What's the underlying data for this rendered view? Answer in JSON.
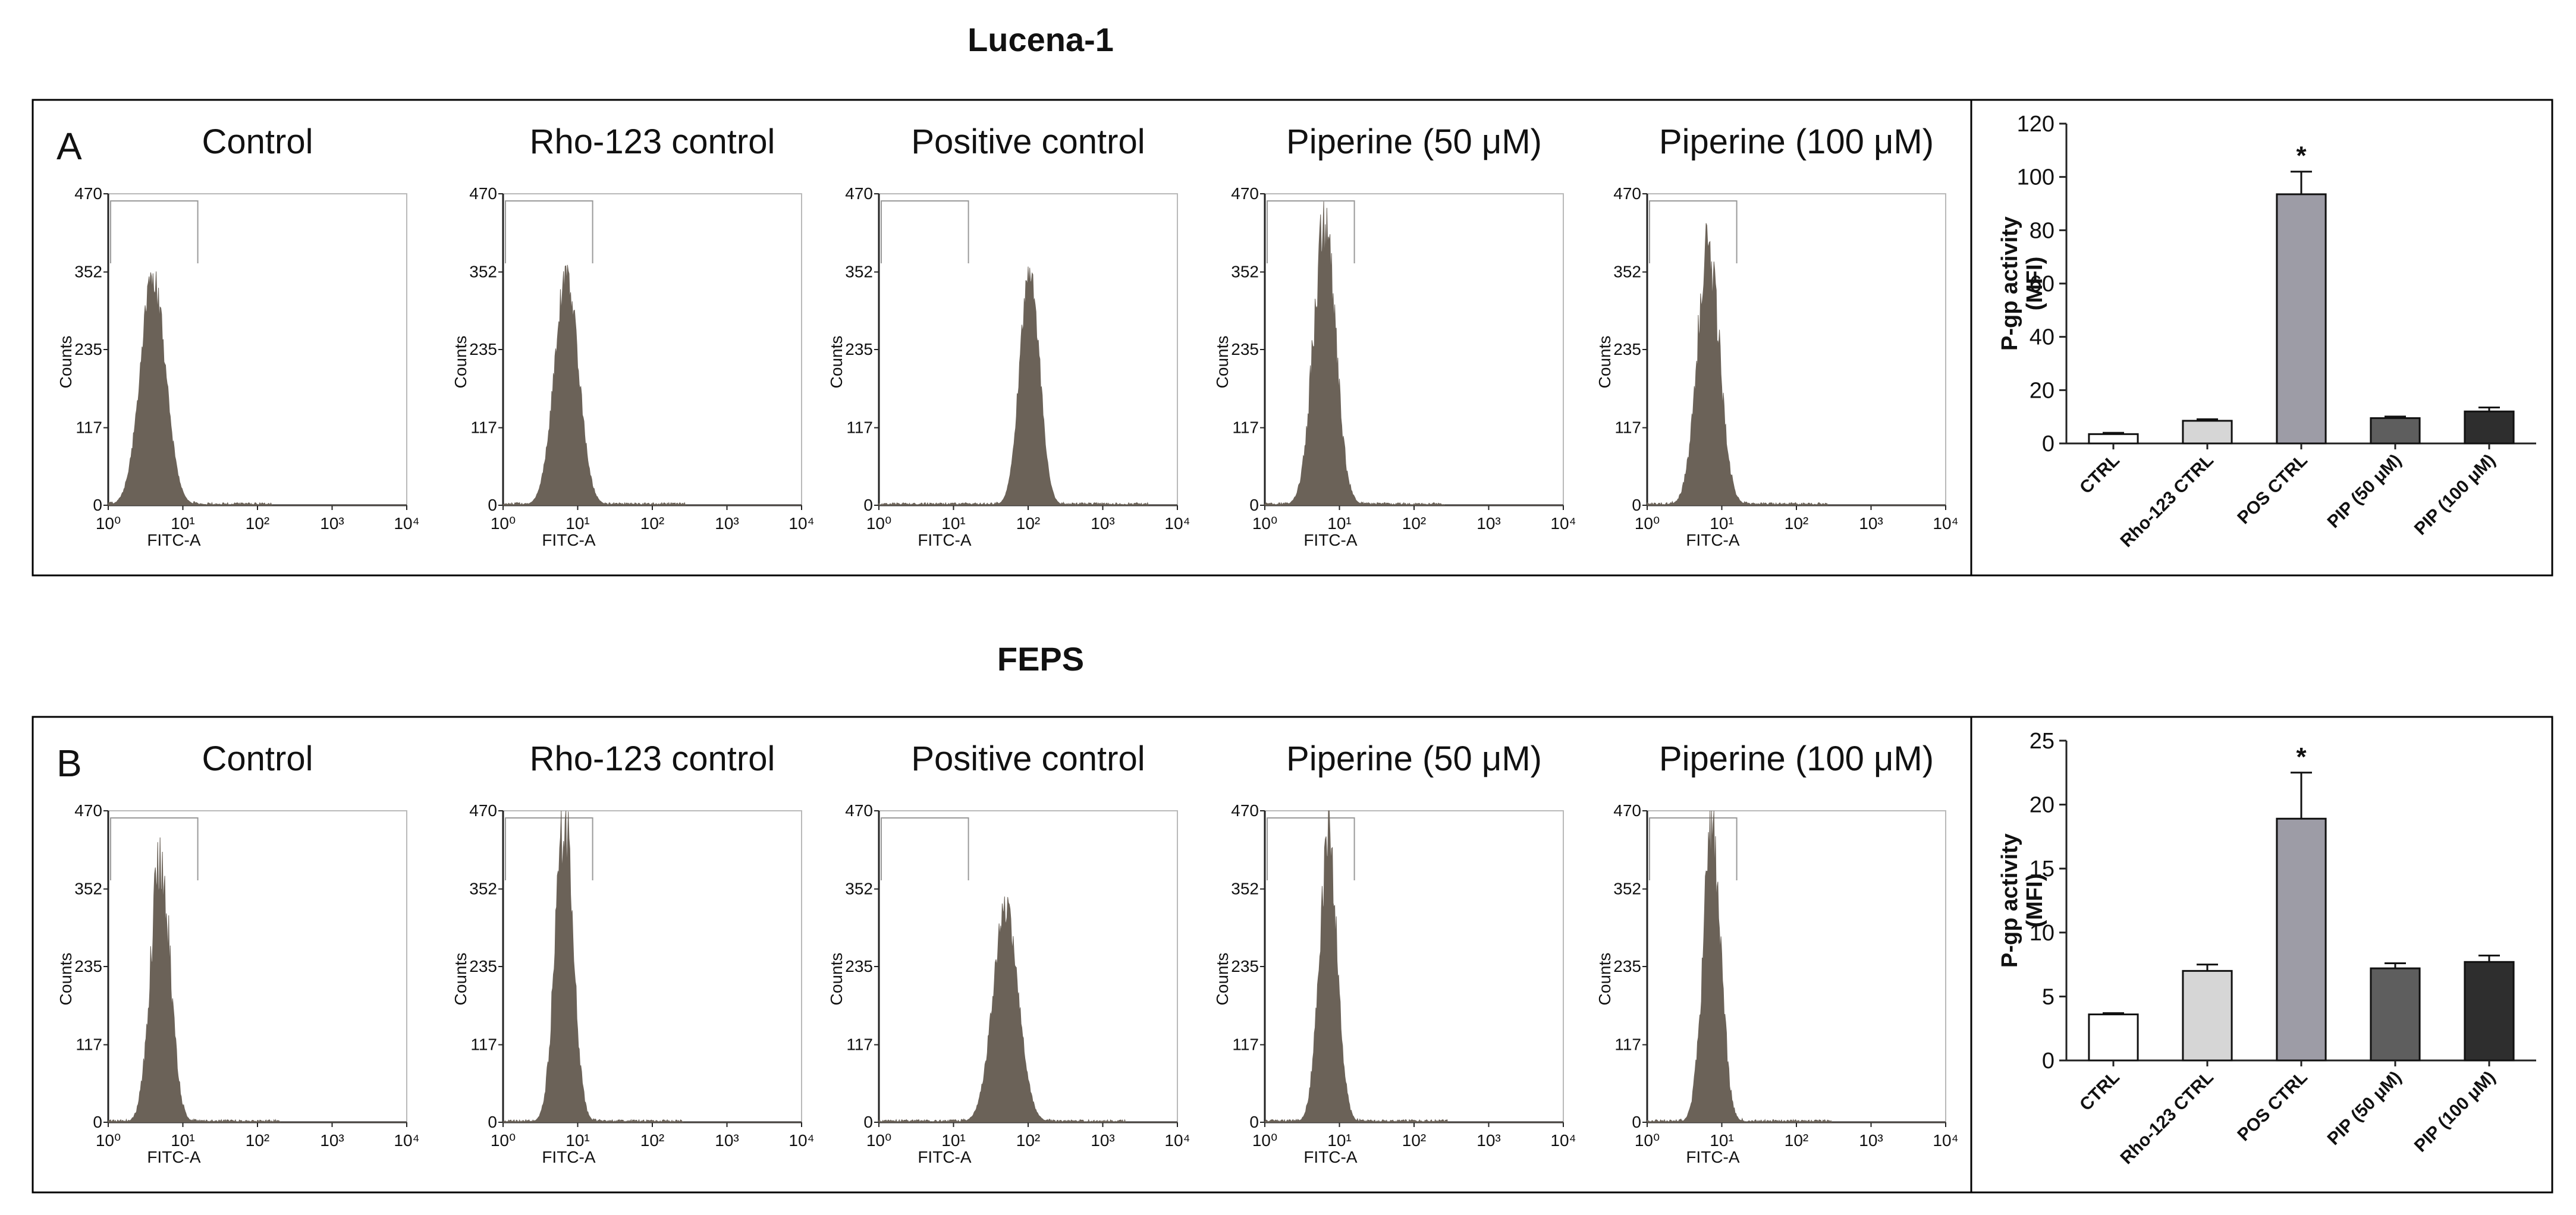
{
  "figure": {
    "panels": [
      {
        "title": "Lucena-1",
        "label": "A",
        "histograms": [
          {
            "title": "Control",
            "ylabel": "Counts",
            "xlabel": "FITC-A",
            "peak_log10": 0.6,
            "sigma": 0.17,
            "peak_count": 340,
            "spiky": false
          },
          {
            "title": "Rho-123 control",
            "ylabel": "Counts",
            "xlabel": "FITC-A",
            "peak_log10": 0.85,
            "sigma": 0.16,
            "peak_count": 345,
            "spiky": false
          },
          {
            "title": "Positive control",
            "ylabel": "Counts",
            "xlabel": "FITC-A",
            "peak_log10": 2.02,
            "sigma": 0.13,
            "peak_count": 360,
            "spiky": false
          },
          {
            "title": "Piperine (50 μM)",
            "ylabel": "Counts",
            "xlabel": "FITC-A",
            "peak_log10": 0.8,
            "sigma": 0.15,
            "peak_count": 410,
            "spiky": true
          },
          {
            "title": "Piperine (100 μM)",
            "ylabel": "Counts",
            "xlabel": "FITC-A",
            "peak_log10": 0.82,
            "sigma": 0.15,
            "peak_count": 378,
            "spiky": true
          }
        ],
        "histogram_axis": {
          "yticks": [
            "470",
            "352",
            "235",
            "117",
            "0"
          ],
          "ytick_values": [
            470,
            352,
            235,
            117,
            0
          ],
          "xticks": [
            "10⁰",
            "10¹",
            "10²",
            "10³",
            "10⁴"
          ],
          "ymax": 470,
          "gate_end_log10": 1.2
        },
        "bar": {
          "categories": [
            "CTRL",
            "Rho-123 CTRL",
            "POS CTRL",
            "PIP (50 μM)",
            "PIP (100 μM)"
          ],
          "values": [
            3.5,
            8.5,
            93.5,
            9.5,
            12
          ],
          "errors": [
            0.5,
            0.6,
            8.5,
            0.6,
            1.5
          ],
          "significance": [
            "",
            "",
            "*",
            "",
            ""
          ],
          "ylabel_line1": "P-gp activity",
          "ylabel_line2": "(MFI)",
          "yticks": [
            "0",
            "20",
            "40",
            "60",
            "80",
            "100",
            "120"
          ],
          "ylim": [
            0,
            120
          ]
        }
      },
      {
        "title": "FEPS",
        "label": "B",
        "histograms": [
          {
            "title": "Control",
            "ylabel": "Counts",
            "xlabel": "FITC-A",
            "peak_log10": 0.7,
            "sigma": 0.13,
            "peak_count": 398,
            "spiky": true
          },
          {
            "title": "Rho-123 control",
            "ylabel": "Counts",
            "xlabel": "FITC-A",
            "peak_log10": 0.82,
            "sigma": 0.12,
            "peak_count": 455,
            "spiky": true
          },
          {
            "title": "Positive control",
            "ylabel": "Counts",
            "xlabel": "FITC-A",
            "peak_log10": 1.7,
            "sigma": 0.17,
            "peak_count": 320,
            "spiky": false
          },
          {
            "title": "Piperine (50 μM)",
            "ylabel": "Counts",
            "xlabel": "FITC-A",
            "peak_log10": 0.85,
            "sigma": 0.12,
            "peak_count": 425,
            "spiky": true
          },
          {
            "title": "Piperine (100 μM)",
            "ylabel": "Counts",
            "xlabel": "FITC-A",
            "peak_log10": 0.87,
            "sigma": 0.12,
            "peak_count": 435,
            "spiky": true
          }
        ],
        "histogram_axis": {
          "yticks": [
            "470",
            "352",
            "235",
            "117",
            "0"
          ],
          "ytick_values": [
            470,
            352,
            235,
            117,
            0
          ],
          "xticks": [
            "10⁰",
            "10¹",
            "10²",
            "10³",
            "10⁴"
          ],
          "ymax": 470,
          "gate_end_log10": 1.2
        },
        "bar": {
          "categories": [
            "CTRL",
            "Rho-123 CTRL",
            "POS CTRL",
            "PIP (50 μM)",
            "PIP (100 μM)"
          ],
          "values": [
            3.6,
            7.0,
            18.9,
            7.2,
            7.7
          ],
          "errors": [
            0.1,
            0.5,
            3.6,
            0.4,
            0.5
          ],
          "significance": [
            "",
            "",
            "*",
            "",
            ""
          ],
          "ylabel_line1": "P-gp activity",
          "ylabel_line2": "(MFI)",
          "yticks": [
            "0",
            "5",
            "10",
            "15",
            "20",
            "25"
          ],
          "ylim": [
            0,
            25
          ]
        }
      }
    ]
  },
  "colors": {
    "hist_fill": "#6b6258",
    "bars": [
      "#ffffff",
      "#d6d6d6",
      "#9d9ca6",
      "#5e5e5e",
      "#2e2e2e"
    ],
    "axis": "#222222",
    "panel_border": "#000000",
    "gate": "#9a9a9a"
  },
  "chart_data": [
    {
      "type": "bar",
      "title": "Lucena-1",
      "categories": [
        "CTRL",
        "Rho-123 CTRL",
        "POS CTRL",
        "PIP (50 μM)",
        "PIP (100 μM)"
      ],
      "values": [
        3.5,
        8.5,
        93.5,
        9.5,
        12
      ],
      "errors": [
        0.5,
        0.6,
        8.5,
        0.6,
        1.5
      ],
      "ylabel": "P-gp activity (MFI)",
      "ylim": [
        0,
        120
      ]
    },
    {
      "type": "bar",
      "title": "FEPS",
      "categories": [
        "CTRL",
        "Rho-123 CTRL",
        "POS CTRL",
        "PIP (50 μM)",
        "PIP (100 μM)"
      ],
      "values": [
        3.6,
        7.0,
        18.9,
        7.2,
        7.7
      ],
      "errors": [
        0.1,
        0.5,
        3.6,
        0.4,
        0.5
      ],
      "ylabel": "P-gp activity (MFI)",
      "ylim": [
        0,
        25
      ]
    }
  ]
}
